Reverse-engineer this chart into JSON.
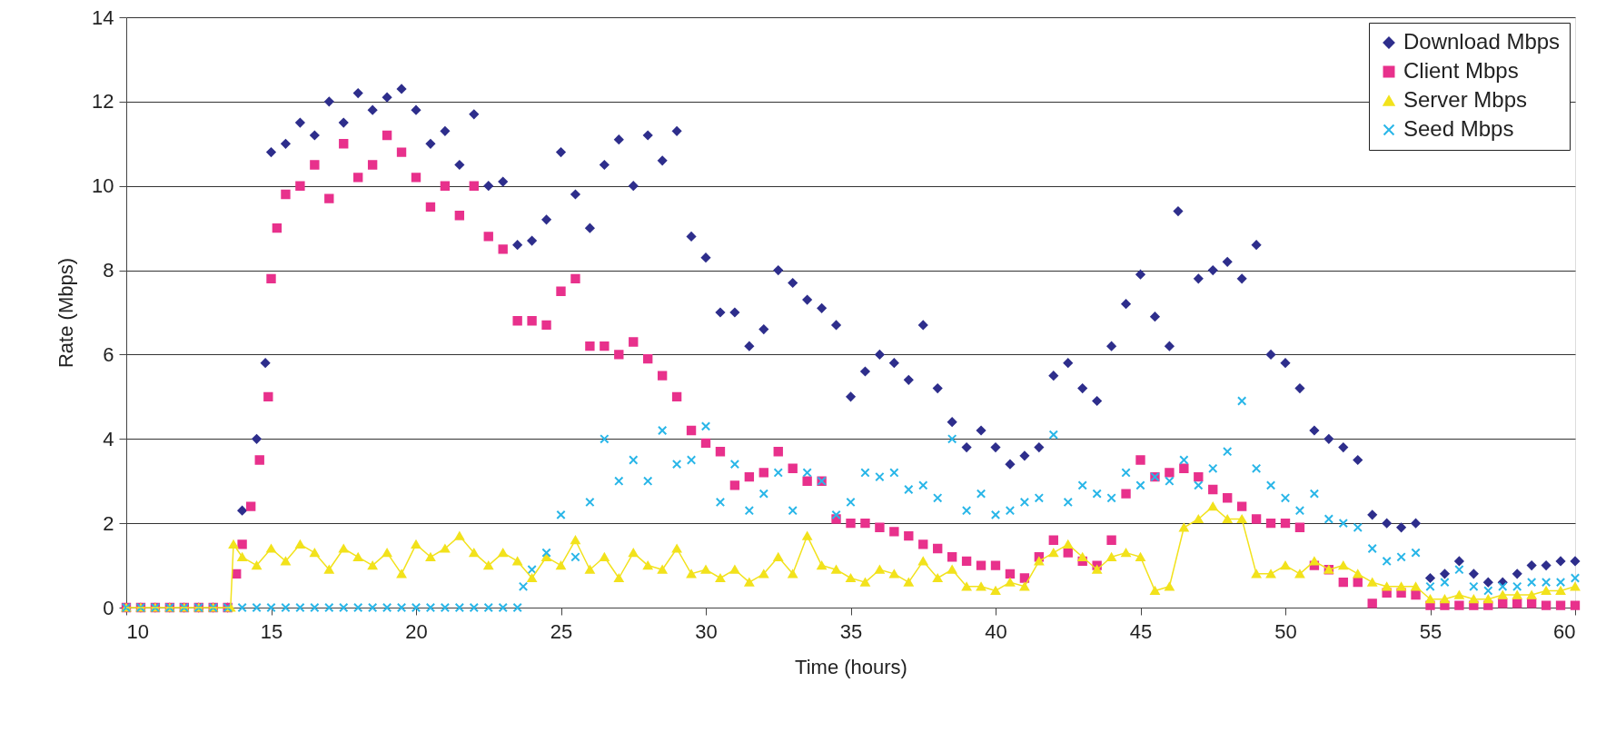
{
  "chart_data": {
    "type": "scatter",
    "xlabel": "Time (hours)",
    "ylabel": "Rate (Mbps)",
    "xlim": [
      10,
      60
    ],
    "xticks": [
      10,
      15,
      20,
      25,
      30,
      35,
      40,
      45,
      50,
      55,
      60
    ],
    "ylim": [
      0,
      14
    ],
    "yticks": [
      0,
      2,
      4,
      6,
      8,
      10,
      12,
      14
    ],
    "grid": "y",
    "legend": "top right",
    "series": [
      {
        "name": "Download Mbps",
        "color": "#2e2e8c",
        "marker": "diamond",
        "x": [
          10,
          10.5,
          11,
          11.5,
          12,
          12.5,
          13,
          13.5,
          14,
          14.5,
          14.8,
          15,
          15.5,
          16,
          16.5,
          17,
          17.5,
          18,
          18.5,
          19,
          19.5,
          20,
          20.5,
          21,
          21.5,
          22,
          22.5,
          23,
          23.5,
          24,
          24.5,
          25,
          25.5,
          26,
          26.5,
          27,
          27.5,
          28,
          28.5,
          29,
          29.5,
          30,
          30.5,
          31,
          31.5,
          32,
          32.5,
          33,
          33.5,
          34,
          34.5,
          35,
          35.5,
          36,
          36.5,
          37,
          37.5,
          38,
          38.5,
          39,
          39.5,
          40,
          40.5,
          41,
          41.5,
          42,
          42.5,
          43,
          43.5,
          44,
          44.5,
          45,
          45.5,
          46,
          46.3,
          47,
          47.5,
          48,
          48.5,
          49,
          49.5,
          50,
          50.5,
          51,
          51.5,
          52,
          52.5,
          53,
          53.5,
          54,
          54.5,
          55,
          55.5,
          56,
          56.5,
          57,
          57.5,
          58,
          58.5,
          59,
          59.5,
          60
        ],
        "values": [
          0,
          0,
          0,
          0,
          0,
          0,
          0,
          0,
          2.3,
          4.0,
          5.8,
          10.8,
          11.0,
          11.5,
          11.2,
          12.0,
          11.5,
          12.2,
          11.8,
          12.1,
          12.3,
          11.8,
          11.0,
          11.3,
          10.5,
          11.7,
          10.0,
          10.1,
          8.6,
          8.7,
          9.2,
          10.8,
          9.8,
          9.0,
          10.5,
          11.1,
          10.0,
          11.2,
          10.6,
          11.3,
          8.8,
          8.3,
          7.0,
          7.0,
          6.2,
          6.6,
          8.0,
          7.7,
          7.3,
          7.1,
          6.7,
          5.0,
          5.6,
          6.0,
          5.8,
          5.4,
          6.7,
          5.2,
          4.4,
          3.8,
          4.2,
          3.8,
          3.4,
          3.6,
          3.8,
          5.5,
          5.8,
          5.2,
          4.9,
          6.2,
          7.2,
          7.9,
          6.9,
          6.2,
          9.4,
          7.8,
          8.0,
          8.2,
          7.8,
          8.6,
          6.0,
          5.8,
          5.2,
          4.2,
          4.0,
          3.8,
          3.5,
          2.2,
          2.0,
          1.9,
          2.0,
          0.7,
          0.8,
          1.1,
          0.8,
          0.6,
          0.6,
          0.8,
          1.0,
          1.0,
          1.1,
          1.1
        ]
      },
      {
        "name": "Client Mbps",
        "color": "#e8318c",
        "marker": "square",
        "x": [
          10,
          10.5,
          11,
          11.5,
          12,
          12.5,
          13,
          13.5,
          13.8,
          14,
          14.3,
          14.6,
          14.9,
          15,
          15.2,
          15.5,
          16,
          16.5,
          17,
          17.5,
          18,
          18.5,
          19,
          19.5,
          20,
          20.5,
          21,
          21.5,
          22,
          22.5,
          23,
          23.5,
          24,
          24.5,
          25,
          25.5,
          26,
          26.5,
          27,
          27.5,
          28,
          28.5,
          29,
          29.5,
          30,
          30.5,
          31,
          31.5,
          32,
          32.5,
          33,
          33.5,
          34,
          34.5,
          35,
          35.5,
          36,
          36.5,
          37,
          37.5,
          38,
          38.5,
          39,
          39.5,
          40,
          40.5,
          41,
          41.5,
          42,
          42.5,
          43,
          43.5,
          44,
          44.5,
          45,
          45.5,
          46,
          46.5,
          47,
          47.5,
          48,
          48.5,
          49,
          49.5,
          50,
          50.5,
          51,
          51.5,
          52,
          52.5,
          53,
          53.5,
          54,
          54.5,
          55,
          55.5,
          56,
          56.5,
          57,
          57.5,
          58,
          58.5,
          59,
          59.5,
          60
        ],
        "values": [
          0,
          0,
          0,
          0,
          0,
          0,
          0,
          0,
          0.8,
          1.5,
          2.4,
          3.5,
          5.0,
          7.8,
          9.0,
          9.8,
          10.0,
          10.5,
          9.7,
          11.0,
          10.2,
          10.5,
          11.2,
          10.8,
          10.2,
          9.5,
          10.0,
          9.3,
          10.0,
          8.8,
          8.5,
          6.8,
          6.8,
          6.7,
          7.5,
          7.8,
          6.2,
          6.2,
          6.0,
          6.3,
          5.9,
          5.5,
          5.0,
          4.2,
          3.9,
          3.7,
          2.9,
          3.1,
          3.2,
          3.7,
          3.3,
          3.0,
          3.0,
          2.1,
          2.0,
          2.0,
          1.9,
          1.8,
          1.7,
          1.5,
          1.4,
          1.2,
          1.1,
          1.0,
          1.0,
          0.8,
          0.7,
          1.2,
          1.6,
          1.3,
          1.1,
          1.0,
          1.6,
          2.7,
          3.5,
          3.1,
          3.2,
          3.3,
          3.1,
          2.8,
          2.6,
          2.4,
          2.1,
          2.0,
          2.0,
          1.9,
          1.0,
          0.9,
          0.6,
          0.6,
          0.1,
          0.35,
          0.35,
          0.3,
          0.05,
          0.05,
          0.05,
          0.05,
          0.05,
          0.1,
          0.1,
          0.1,
          0.05,
          0.05,
          0.05
        ]
      },
      {
        "name": "Server Mbps",
        "color": "#f2e21c",
        "type": "line",
        "marker": "triangle",
        "x": [
          10,
          10.5,
          11,
          11.5,
          12,
          12.5,
          13,
          13.6,
          13.7,
          14,
          14.5,
          15,
          15.5,
          16,
          16.5,
          17,
          17.5,
          18,
          18.5,
          19,
          19.5,
          20,
          20.5,
          21,
          21.5,
          22,
          22.5,
          23,
          23.5,
          24,
          24.5,
          25,
          25.5,
          26,
          26.5,
          27,
          27.5,
          28,
          28.5,
          29,
          29.5,
          30,
          30.5,
          31,
          31.5,
          32,
          32.5,
          33,
          33.5,
          34,
          34.5,
          35,
          35.5,
          36,
          36.5,
          37,
          37.5,
          38,
          38.5,
          39,
          39.5,
          40,
          40.5,
          41,
          41.5,
          42,
          42.5,
          43,
          43.5,
          44,
          44.5,
          45,
          45.5,
          46,
          46.5,
          47,
          47.5,
          48,
          48.5,
          49,
          49.5,
          50,
          50.5,
          51,
          51.5,
          52,
          52.5,
          53,
          53.5,
          54,
          54.5,
          55,
          55.5,
          56,
          56.5,
          57,
          57.5,
          58,
          58.5,
          59,
          59.5,
          60
        ],
        "values": [
          0,
          0,
          0,
          0,
          0,
          0,
          0,
          0,
          1.5,
          1.2,
          1.0,
          1.4,
          1.1,
          1.5,
          1.3,
          0.9,
          1.4,
          1.2,
          1.0,
          1.3,
          0.8,
          1.5,
          1.2,
          1.4,
          1.7,
          1.3,
          1.0,
          1.3,
          1.1,
          0.7,
          1.2,
          1.0,
          1.6,
          0.9,
          1.2,
          0.7,
          1.3,
          1.0,
          0.9,
          1.4,
          0.8,
          0.9,
          0.7,
          0.9,
          0.6,
          0.8,
          1.2,
          0.8,
          1.7,
          1.0,
          0.9,
          0.7,
          0.6,
          0.9,
          0.8,
          0.6,
          1.1,
          0.7,
          0.9,
          0.5,
          0.5,
          0.4,
          0.6,
          0.5,
          1.1,
          1.3,
          1.5,
          1.2,
          0.9,
          1.2,
          1.3,
          1.2,
          0.4,
          0.5,
          1.9,
          2.1,
          2.4,
          2.1,
          2.1,
          0.8,
          0.8,
          1.0,
          0.8,
          1.1,
          0.9,
          1.0,
          0.8,
          0.6,
          0.5,
          0.5,
          0.5,
          0.2,
          0.2,
          0.3,
          0.2,
          0.2,
          0.3,
          0.3,
          0.3,
          0.4,
          0.4,
          0.5
        ]
      },
      {
        "name": "Seed Mbps",
        "color": "#29b6e8",
        "marker": "cross",
        "x": [
          10,
          10.5,
          11,
          11.5,
          12,
          12.5,
          13,
          13.5,
          14,
          14.5,
          15,
          15.5,
          16,
          16.5,
          17,
          17.5,
          18,
          18.5,
          19,
          19.5,
          20,
          20.5,
          21,
          21.5,
          22,
          22.5,
          23,
          23.5,
          23.7,
          24,
          24.5,
          25,
          25.5,
          26,
          26.5,
          27,
          27.5,
          28,
          28.5,
          29,
          29.5,
          30,
          30.5,
          31,
          31.5,
          32,
          32.5,
          33,
          33.5,
          34,
          34.5,
          35,
          35.5,
          36,
          36.5,
          37,
          37.5,
          38,
          38.5,
          39,
          39.5,
          40,
          40.5,
          41,
          41.5,
          42,
          42.5,
          43,
          43.5,
          44,
          44.5,
          45,
          45.5,
          46,
          46.5,
          47,
          47.5,
          48,
          48.5,
          49,
          49.5,
          50,
          50.5,
          51,
          51.5,
          52,
          52.5,
          53,
          53.5,
          54,
          54.5,
          55,
          55.5,
          56,
          56.5,
          57,
          57.5,
          58,
          58.5,
          59,
          59.5,
          60
        ],
        "values": [
          0,
          0,
          0,
          0,
          0,
          0,
          0,
          0,
          0,
          0,
          0,
          0,
          0,
          0,
          0,
          0,
          0,
          0,
          0,
          0,
          0,
          0,
          0,
          0,
          0,
          0,
          0,
          0,
          0.5,
          0.9,
          1.3,
          2.2,
          1.2,
          2.5,
          4.0,
          3.0,
          3.5,
          3.0,
          4.2,
          3.4,
          3.5,
          4.3,
          2.5,
          3.4,
          2.3,
          2.7,
          3.2,
          2.3,
          3.2,
          3.0,
          2.2,
          2.5,
          3.2,
          3.1,
          3.2,
          2.8,
          2.9,
          2.6,
          4.0,
          2.3,
          2.7,
          2.2,
          2.3,
          2.5,
          2.6,
          4.1,
          2.5,
          2.9,
          2.7,
          2.6,
          3.2,
          2.9,
          3.1,
          3.0,
          3.5,
          2.9,
          3.3,
          3.7,
          4.9,
          3.3,
          2.9,
          2.6,
          2.3,
          2.7,
          2.1,
          2.0,
          1.9,
          1.4,
          1.1,
          1.2,
          1.3,
          0.5,
          0.6,
          0.9,
          0.5,
          0.4,
          0.5,
          0.5,
          0.6,
          0.6,
          0.6,
          0.7
        ]
      }
    ]
  }
}
